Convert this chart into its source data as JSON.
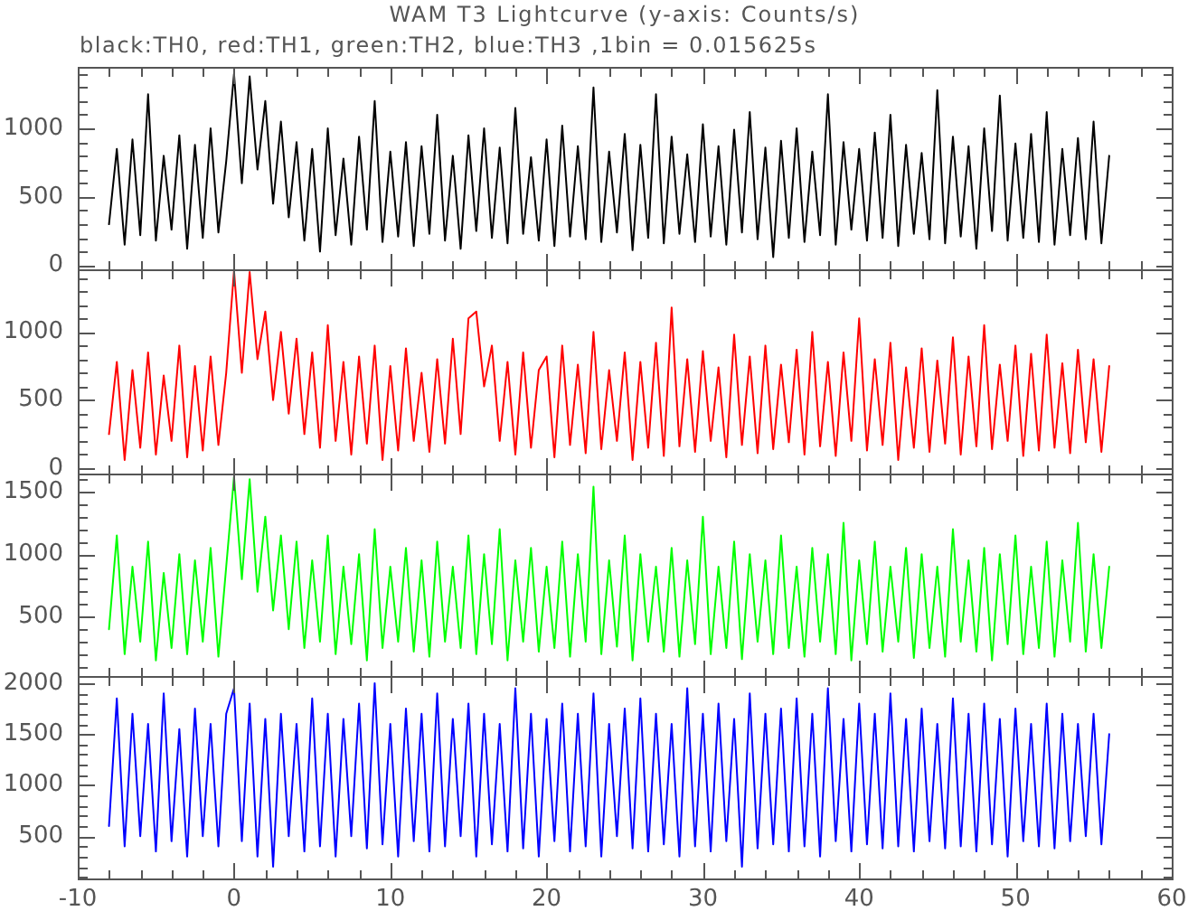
{
  "chart_data": [
    {
      "type": "line",
      "title": "WAM T3 Lightcurve (y-axis: Counts/s)",
      "subtitle": "black:TH0, red:TH1, green:TH2, blue:TH3 ,1bin = 0.015625s",
      "x": [
        -8,
        -7.5,
        -7,
        -6.5,
        -6,
        -5.5,
        -5,
        -4.5,
        -4,
        -3.5,
        -3,
        -2.5,
        -2,
        -1.5,
        -1,
        -0.5,
        0,
        0.5,
        1,
        1.5,
        2,
        2.5,
        3,
        3.5,
        4,
        4.5,
        5,
        5.5,
        6,
        6.5,
        7,
        7.5,
        8,
        8.5,
        9,
        9.5,
        10,
        10.5,
        11,
        11.5,
        12,
        12.5,
        13,
        13.5,
        14,
        14.5,
        15,
        15.5,
        16,
        16.5,
        17,
        17.5,
        18,
        18.5,
        19,
        19.5,
        20,
        20.5,
        21,
        21.5,
        22,
        22.5,
        23,
        23.5,
        24,
        24.5,
        25,
        25.5,
        26,
        26.5,
        27,
        27.5,
        28,
        28.5,
        29,
        29.5,
        30,
        30.5,
        31,
        31.5,
        32,
        32.5,
        33,
        33.5,
        34,
        34.5,
        35,
        35.5,
        36,
        36.5,
        37,
        37.5,
        38,
        38.5,
        39,
        39.5,
        40,
        40.5,
        41,
        41.5,
        42,
        42.5,
        43,
        43.5,
        44,
        44.5,
        45,
        45.5,
        46,
        46.5,
        47,
        47.5,
        48,
        48.5,
        49,
        49.5,
        50,
        50.5,
        51,
        51.5,
        52,
        52.5,
        53,
        53.5,
        54,
        54.5,
        55,
        55.5,
        56
      ],
      "series": [
        {
          "color": "#000000",
          "values": [
            300,
            850,
            150,
            920,
            220,
            1250,
            180,
            800,
            260,
            950,
            120,
            880,
            200,
            1000,
            240,
            760,
            1400,
            600,
            1380,
            700,
            1200,
            450,
            1050,
            350,
            900,
            180,
            850,
            100,
            1000,
            220,
            780,
            150,
            940,
            260,
            1200,
            170,
            830,
            210,
            900,
            140,
            870,
            230,
            1100,
            180,
            800,
            120,
            950,
            250,
            1000,
            200,
            860,
            160,
            1150,
            230,
            790,
            180,
            920,
            140,
            1020,
            210,
            870,
            190,
            1300,
            170,
            830,
            240,
            960,
            110,
            880,
            200,
            1250,
            160,
            940,
            230,
            810,
            170,
            1030,
            210,
            870,
            150,
            990,
            240,
            1120,
            190,
            860,
            60,
            910,
            200,
            1000,
            170,
            830,
            220,
            1250,
            150,
            900,
            260,
            850,
            180,
            970,
            200,
            1100,
            140,
            880,
            230,
            820,
            190,
            1280,
            160,
            940,
            210,
            870,
            120,
            1000,
            250,
            1240,
            180,
            890,
            200,
            960,
            170,
            1120,
            150,
            850,
            220,
            930,
            190,
            1050,
            160,
            800
          ]
        }
      ],
      "xlim": [
        -10,
        60
      ],
      "xticks": [
        -10,
        {
          "value": -8,
          "label": null
        },
        {
          "value": -6,
          "label": null
        },
        {
          "value": -4,
          "label": null
        },
        {
          "value": -2,
          "label": null
        },
        0,
        {
          "value": 2,
          "label": null
        },
        {
          "value": 4,
          "label": null
        },
        {
          "value": 6,
          "label": null
        },
        {
          "value": 8,
          "label": null
        },
        10,
        {
          "value": 12,
          "label": null
        },
        {
          "value": 14,
          "label": null
        },
        {
          "value": 16,
          "label": null
        },
        {
          "value": 18,
          "label": null
        },
        20,
        {
          "value": 22,
          "label": null
        },
        {
          "value": 24,
          "label": null
        },
        {
          "value": 26,
          "label": null
        },
        {
          "value": 28,
          "label": null
        },
        30,
        {
          "value": 32,
          "label": null
        },
        {
          "value": 34,
          "label": null
        },
        {
          "value": 36,
          "label": null
        },
        {
          "value": 38,
          "label": null
        },
        40,
        {
          "value": 42,
          "label": null
        },
        {
          "value": 44,
          "label": null
        },
        {
          "value": 46,
          "label": null
        },
        {
          "value": 48,
          "label": null
        },
        50,
        {
          "value": 52,
          "label": null
        },
        {
          "value": 54,
          "label": null
        },
        {
          "value": 56,
          "label": null
        },
        {
          "value": 58,
          "label": null
        },
        60
      ],
      "ylim": [
        -30,
        1450
      ],
      "yticks": [
        0,
        {
          "value": 100,
          "label": null
        },
        {
          "value": 200,
          "label": null
        },
        {
          "value": 300,
          "label": null
        },
        {
          "value": 400,
          "label": null
        },
        500,
        {
          "value": 600,
          "label": null
        },
        {
          "value": 700,
          "label": null
        },
        {
          "value": 800,
          "label": null
        },
        {
          "value": 900,
          "label": null
        },
        1000,
        {
          "value": 1100,
          "label": null
        },
        {
          "value": 1200,
          "label": null
        },
        {
          "value": 1300,
          "label": null
        },
        {
          "value": 1400,
          "label": null
        }
      ],
      "tick_labels": "y"
    },
    {
      "type": "line",
      "x": [
        -8,
        -7.5,
        -7,
        -6.5,
        -6,
        -5.5,
        -5,
        -4.5,
        -4,
        -3.5,
        -3,
        -2.5,
        -2,
        -1.5,
        -1,
        -0.5,
        0,
        0.5,
        1,
        1.5,
        2,
        2.5,
        3,
        3.5,
        4,
        4.5,
        5,
        5.5,
        6,
        6.5,
        7,
        7.5,
        8,
        8.5,
        9,
        9.5,
        10,
        10.5,
        11,
        11.5,
        12,
        12.5,
        13,
        13.5,
        14,
        14.5,
        15,
        15.5,
        16,
        16.5,
        17,
        17.5,
        18,
        18.5,
        19,
        19.5,
        20,
        20.5,
        21,
        21.5,
        22,
        22.5,
        23,
        23.5,
        24,
        24.5,
        25,
        25.5,
        26,
        26.5,
        27,
        27.5,
        28,
        28.5,
        29,
        29.5,
        30,
        30.5,
        31,
        31.5,
        32,
        32.5,
        33,
        33.5,
        34,
        34.5,
        35,
        35.5,
        36,
        36.5,
        37,
        37.5,
        38,
        38.5,
        39,
        39.5,
        40,
        40.5,
        41,
        41.5,
        42,
        42.5,
        43,
        43.5,
        44,
        44.5,
        45,
        45.5,
        46,
        46.5,
        47,
        47.5,
        48,
        48.5,
        49,
        49.5,
        50,
        50.5,
        51,
        51.5,
        52,
        52.5,
        53,
        53.5,
        54,
        54.5,
        55,
        55.5,
        56
      ],
      "series": [
        {
          "color": "#ff0000",
          "values": [
            250,
            780,
            60,
            720,
            150,
            850,
            100,
            680,
            200,
            900,
            80,
            750,
            130,
            820,
            170,
            700,
            1450,
            700,
            1440,
            800,
            1150,
            500,
            1000,
            400,
            950,
            250,
            850,
            150,
            1050,
            200,
            780,
            100,
            820,
            180,
            900,
            60,
            750,
            130,
            880,
            200,
            700,
            120,
            800,
            180,
            950,
            250,
            1100,
            1150,
            600,
            900,
            200,
            780,
            100,
            850,
            150,
            720,
            820,
            80,
            900,
            170,
            760,
            110,
            1000,
            140,
            720,
            200,
            850,
            60,
            780,
            150,
            920,
            90,
            1180,
            160,
            800,
            120,
            860,
            200,
            740,
            80,
            980,
            170,
            820,
            110,
            900,
            140,
            760,
            190,
            870,
            100,
            1000,
            160,
            780,
            90,
            850,
            200,
            1100,
            130,
            800,
            170,
            920,
            60,
            740,
            150,
            880,
            120,
            790,
            180,
            960,
            100,
            820,
            160,
            1050,
            140,
            760,
            200,
            900,
            90,
            840,
            130,
            980,
            150,
            770,
            110,
            870,
            190,
            800,
            120,
            750
          ]
        }
      ],
      "xlim": [
        -10,
        60
      ],
      "xticks": [
        -10,
        {
          "value": -8,
          "label": null
        },
        {
          "value": -6,
          "label": null
        },
        {
          "value": -4,
          "label": null
        },
        {
          "value": -2,
          "label": null
        },
        0,
        {
          "value": 2,
          "label": null
        },
        {
          "value": 4,
          "label": null
        },
        {
          "value": 6,
          "label": null
        },
        {
          "value": 8,
          "label": null
        },
        10,
        {
          "value": 12,
          "label": null
        },
        {
          "value": 14,
          "label": null
        },
        {
          "value": 16,
          "label": null
        },
        {
          "value": 18,
          "label": null
        },
        20,
        {
          "value": 22,
          "label": null
        },
        {
          "value": 24,
          "label": null
        },
        {
          "value": 26,
          "label": null
        },
        {
          "value": 28,
          "label": null
        },
        30,
        {
          "value": 32,
          "label": null
        },
        {
          "value": 34,
          "label": null
        },
        {
          "value": 36,
          "label": null
        },
        {
          "value": 38,
          "label": null
        },
        40,
        {
          "value": 42,
          "label": null
        },
        {
          "value": 44,
          "label": null
        },
        {
          "value": 46,
          "label": null
        },
        {
          "value": 48,
          "label": null
        },
        50,
        {
          "value": 52,
          "label": null
        },
        {
          "value": 54,
          "label": null
        },
        {
          "value": 56,
          "label": null
        },
        {
          "value": 58,
          "label": null
        },
        60
      ],
      "ylim": [
        -40,
        1460
      ],
      "yticks": [
        0,
        {
          "value": 100,
          "label": null
        },
        {
          "value": 200,
          "label": null
        },
        {
          "value": 300,
          "label": null
        },
        {
          "value": 400,
          "label": null
        },
        500,
        {
          "value": 600,
          "label": null
        },
        {
          "value": 700,
          "label": null
        },
        {
          "value": 800,
          "label": null
        },
        {
          "value": 900,
          "label": null
        },
        1000,
        {
          "value": 1100,
          "label": null
        },
        {
          "value": 1200,
          "label": null
        },
        {
          "value": 1300,
          "label": null
        },
        {
          "value": 1400,
          "label": null
        }
      ],
      "tick_labels": "y"
    },
    {
      "type": "line",
      "x": [
        -8,
        -7.5,
        -7,
        -6.5,
        -6,
        -5.5,
        -5,
        -4.5,
        -4,
        -3.5,
        -3,
        -2.5,
        -2,
        -1.5,
        -1,
        -0.5,
        0,
        0.5,
        1,
        1.5,
        2,
        2.5,
        3,
        3.5,
        4,
        4.5,
        5,
        5.5,
        6,
        6.5,
        7,
        7.5,
        8,
        8.5,
        9,
        9.5,
        10,
        10.5,
        11,
        11.5,
        12,
        12.5,
        13,
        13.5,
        14,
        14.5,
        15,
        15.5,
        16,
        16.5,
        17,
        17.5,
        18,
        18.5,
        19,
        19.5,
        20,
        20.5,
        21,
        21.5,
        22,
        22.5,
        23,
        23.5,
        24,
        24.5,
        25,
        25.5,
        26,
        26.5,
        27,
        27.5,
        28,
        28.5,
        29,
        29.5,
        30,
        30.5,
        31,
        31.5,
        32,
        32.5,
        33,
        33.5,
        34,
        34.5,
        35,
        35.5,
        36,
        36.5,
        37,
        37.5,
        38,
        38.5,
        39,
        39.5,
        40,
        40.5,
        41,
        41.5,
        42,
        42.5,
        43,
        43.5,
        44,
        44.5,
        45,
        45.5,
        46,
        46.5,
        47,
        47.5,
        48,
        48.5,
        49,
        49.5,
        50,
        50.5,
        51,
        51.5,
        52,
        52.5,
        53,
        53.5,
        54,
        54.5,
        55,
        55.5,
        56
      ],
      "series": [
        {
          "color": "#00ff00",
          "values": [
            400,
            1150,
            200,
            900,
            300,
            1100,
            150,
            850,
            250,
            1000,
            200,
            950,
            300,
            1050,
            180,
            900,
            1620,
            800,
            1600,
            700,
            1300,
            550,
            1150,
            400,
            1100,
            250,
            950,
            300,
            1150,
            200,
            900,
            280,
            1000,
            150,
            1200,
            250,
            900,
            300,
            1050,
            220,
            950,
            180,
            1100,
            300,
            900,
            250,
            1150,
            200,
            1000,
            280,
            1200,
            150,
            950,
            300,
            1050,
            220,
            900,
            250,
            1100,
            180,
            1000,
            300,
            1540,
            200,
            950,
            260,
            1150,
            150,
            1000,
            300,
            900,
            220,
            1050,
            180,
            950,
            280,
            1300,
            200,
            900,
            250,
            1100,
            160,
            1000,
            300,
            950,
            200,
            1150,
            250,
            900,
            180,
            1050,
            300,
            1000,
            200,
            1250,
            150,
            950,
            280,
            1100,
            220,
            900,
            300,
            1050,
            170,
            1000,
            250,
            900,
            180,
            1200,
            300,
            950,
            220,
            1050,
            150,
            1000,
            280,
            1150,
            200,
            900,
            250,
            1100,
            180,
            950,
            300,
            1250,
            220,
            1000,
            250,
            900
          ]
        }
      ],
      "xlim": [
        -10,
        60
      ],
      "xticks": [
        -10,
        {
          "value": -8,
          "label": null
        },
        {
          "value": -6,
          "label": null
        },
        {
          "value": -4,
          "label": null
        },
        {
          "value": -2,
          "label": null
        },
        0,
        {
          "value": 2,
          "label": null
        },
        {
          "value": 4,
          "label": null
        },
        {
          "value": 6,
          "label": null
        },
        {
          "value": 8,
          "label": null
        },
        10,
        {
          "value": 12,
          "label": null
        },
        {
          "value": 14,
          "label": null
        },
        {
          "value": 16,
          "label": null
        },
        {
          "value": 18,
          "label": null
        },
        20,
        {
          "value": 22,
          "label": null
        },
        {
          "value": 24,
          "label": null
        },
        {
          "value": 26,
          "label": null
        },
        {
          "value": 28,
          "label": null
        },
        30,
        {
          "value": 32,
          "label": null
        },
        {
          "value": 34,
          "label": null
        },
        {
          "value": 36,
          "label": null
        },
        {
          "value": 38,
          "label": null
        },
        40,
        {
          "value": 42,
          "label": null
        },
        {
          "value": 44,
          "label": null
        },
        {
          "value": 46,
          "label": null
        },
        {
          "value": 48,
          "label": null
        },
        50,
        {
          "value": 52,
          "label": null
        },
        {
          "value": 54,
          "label": null
        },
        {
          "value": 56,
          "label": null
        },
        {
          "value": 58,
          "label": null
        },
        60
      ],
      "ylim": [
        25,
        1645
      ],
      "yticks": [
        {
          "value": 100,
          "label": null
        },
        {
          "value": 200,
          "label": null
        },
        {
          "value": 300,
          "label": null
        },
        {
          "value": 400,
          "label": null
        },
        500,
        {
          "value": 600,
          "label": null
        },
        {
          "value": 700,
          "label": null
        },
        {
          "value": 800,
          "label": null
        },
        {
          "value": 900,
          "label": null
        },
        1000,
        {
          "value": 1100,
          "label": null
        },
        {
          "value": 1200,
          "label": null
        },
        {
          "value": 1300,
          "label": null
        },
        {
          "value": 1400,
          "label": null
        },
        1500,
        {
          "value": 1600,
          "label": null
        }
      ],
      "tick_labels": "y"
    },
    {
      "type": "line",
      "x": [
        -8,
        -7.5,
        -7,
        -6.5,
        -6,
        -5.5,
        -5,
        -4.5,
        -4,
        -3.5,
        -3,
        -2.5,
        -2,
        -1.5,
        -1,
        -0.5,
        0,
        0.5,
        1,
        1.5,
        2,
        2.5,
        3,
        3.5,
        4,
        4.5,
        5,
        5.5,
        6,
        6.5,
        7,
        7.5,
        8,
        8.5,
        9,
        9.5,
        10,
        10.5,
        11,
        11.5,
        12,
        12.5,
        13,
        13.5,
        14,
        14.5,
        15,
        15.5,
        16,
        16.5,
        17,
        17.5,
        18,
        18.5,
        19,
        19.5,
        20,
        20.5,
        21,
        21.5,
        22,
        22.5,
        23,
        23.5,
        24,
        24.5,
        25,
        25.5,
        26,
        26.5,
        27,
        27.5,
        28,
        28.5,
        29,
        29.5,
        30,
        30.5,
        31,
        31.5,
        32,
        32.5,
        33,
        33.5,
        34,
        34.5,
        35,
        35.5,
        36,
        36.5,
        37,
        37.5,
        38,
        38.5,
        39,
        39.5,
        40,
        40.5,
        41,
        41.5,
        42,
        42.5,
        43,
        43.5,
        44,
        44.5,
        45,
        45.5,
        46,
        46.5,
        47,
        47.5,
        48,
        48.5,
        49,
        49.5,
        50,
        50.5,
        51,
        51.5,
        52,
        52.5,
        53,
        53.5,
        54,
        54.5,
        55,
        55.5,
        56
      ],
      "series": [
        {
          "color": "#0000ff",
          "values": [
            600,
            1850,
            400,
            1700,
            500,
            1600,
            350,
            1900,
            450,
            1550,
            300,
            1750,
            500,
            1600,
            400,
            1700,
            1950,
            450,
            1800,
            300,
            1650,
            200,
            1700,
            500,
            1600,
            350,
            1850,
            400,
            1700,
            300,
            1650,
            500,
            1800,
            380,
            2000,
            420,
            1600,
            300,
            1750,
            450,
            1700,
            350,
            1900,
            400,
            1650,
            500,
            1800,
            300,
            1700,
            420,
            1600,
            350,
            1950,
            380,
            1700,
            300,
            1650,
            450,
            1800,
            350,
            1700,
            400,
            1900,
            300,
            1600,
            500,
            1750,
            380,
            1850,
            350,
            1700,
            420,
            1600,
            300,
            1950,
            400,
            1700,
            350,
            1800,
            450,
            1650,
            200,
            1900,
            380,
            1700,
            420,
            1750,
            350,
            1850,
            400,
            1700,
            300,
            1950,
            450,
            1650,
            350,
            1800,
            420,
            1700,
            380,
            1900,
            400,
            1650,
            350,
            1750,
            450,
            1600,
            380,
            1850,
            400,
            1700,
            350,
            1800,
            420,
            1650,
            300,
            1750,
            450,
            1600,
            400,
            1800,
            380,
            1700,
            450,
            1600,
            500,
            1700,
            420,
            1500
          ]
        }
      ],
      "xlim": [
        -10,
        60
      ],
      "xticks": [
        -10,
        {
          "value": -8,
          "label": null
        },
        {
          "value": -6,
          "label": null
        },
        {
          "value": -4,
          "label": null
        },
        {
          "value": -2,
          "label": null
        },
        0,
        {
          "value": 2,
          "label": null
        },
        {
          "value": 4,
          "label": null
        },
        {
          "value": 6,
          "label": null
        },
        {
          "value": 8,
          "label": null
        },
        10,
        {
          "value": 12,
          "label": null
        },
        {
          "value": 14,
          "label": null
        },
        {
          "value": 16,
          "label": null
        },
        {
          "value": 18,
          "label": null
        },
        20,
        {
          "value": 22,
          "label": null
        },
        {
          "value": 24,
          "label": null
        },
        {
          "value": 26,
          "label": null
        },
        {
          "value": 28,
          "label": null
        },
        30,
        {
          "value": 32,
          "label": null
        },
        {
          "value": 34,
          "label": null
        },
        {
          "value": 36,
          "label": null
        },
        {
          "value": 38,
          "label": null
        },
        40,
        {
          "value": 42,
          "label": null
        },
        {
          "value": 44,
          "label": null
        },
        {
          "value": 46,
          "label": null
        },
        {
          "value": 48,
          "label": null
        },
        50,
        {
          "value": 52,
          "label": null
        },
        {
          "value": 54,
          "label": null
        },
        {
          "value": 56,
          "label": null
        },
        {
          "value": 58,
          "label": null
        },
        60
      ],
      "ylim": [
        85,
        2070
      ],
      "yticks": [
        {
          "value": 100,
          "label": null
        },
        {
          "value": 200,
          "label": null
        },
        {
          "value": 300,
          "label": null
        },
        {
          "value": 400,
          "label": null
        },
        500,
        {
          "value": 600,
          "label": null
        },
        {
          "value": 700,
          "label": null
        },
        {
          "value": 800,
          "label": null
        },
        {
          "value": 900,
          "label": null
        },
        1000,
        {
          "value": 1100,
          "label": null
        },
        {
          "value": 1200,
          "label": null
        },
        {
          "value": 1300,
          "label": null
        },
        {
          "value": 1400,
          "label": null
        },
        1500,
        {
          "value": 1600,
          "label": null
        },
        {
          "value": 1700,
          "label": null
        },
        {
          "value": 1800,
          "label": null
        },
        {
          "value": 1900,
          "label": null
        },
        2000
      ]
    }
  ]
}
